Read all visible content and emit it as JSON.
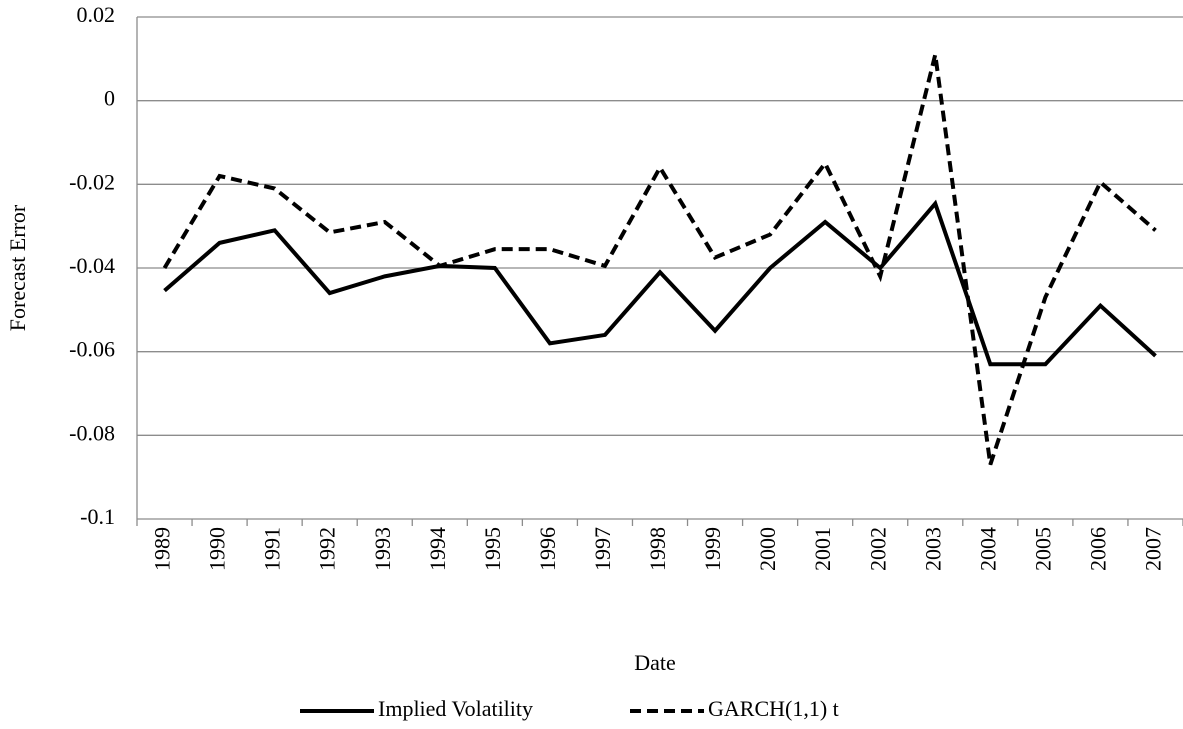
{
  "chart_data": {
    "type": "line",
    "x_label": "Date",
    "y_label": "Forecast Error",
    "categories": [
      "1989",
      "1990",
      "1991",
      "1992",
      "1993",
      "1994",
      "1995",
      "1996",
      "1997",
      "1998",
      "1999",
      "2000",
      "2001",
      "2002",
      "2003",
      "2004",
      "2005",
      "2006",
      "2007"
    ],
    "series": [
      {
        "name": "Implied Volatility",
        "color": "#000000",
        "linestyle": "solid",
        "values": [
          -0.0454,
          -0.034,
          -0.031,
          -0.046,
          -0.042,
          -0.0395,
          -0.04,
          -0.058,
          -0.056,
          -0.041,
          -0.055,
          -0.04,
          -0.029,
          -0.04,
          -0.0246,
          -0.063,
          -0.063,
          -0.049,
          -0.061
        ]
      },
      {
        "name": "GARCH(1,1) t",
        "color": "#000000",
        "linestyle": "dashed",
        "values": [
          -0.04,
          -0.018,
          -0.021,
          -0.0315,
          -0.029,
          -0.0395,
          -0.0355,
          -0.0355,
          -0.0395,
          -0.016,
          -0.0375,
          -0.032,
          -0.015,
          -0.042,
          0.011,
          -0.087,
          -0.047,
          -0.0195,
          -0.031
        ]
      }
    ],
    "ylim": [
      -0.1,
      0.02
    ],
    "yticks": [
      0.02,
      0,
      -0.02,
      -0.04,
      -0.06,
      -0.08,
      -0.1
    ],
    "grid": true,
    "legend": "bottom"
  }
}
